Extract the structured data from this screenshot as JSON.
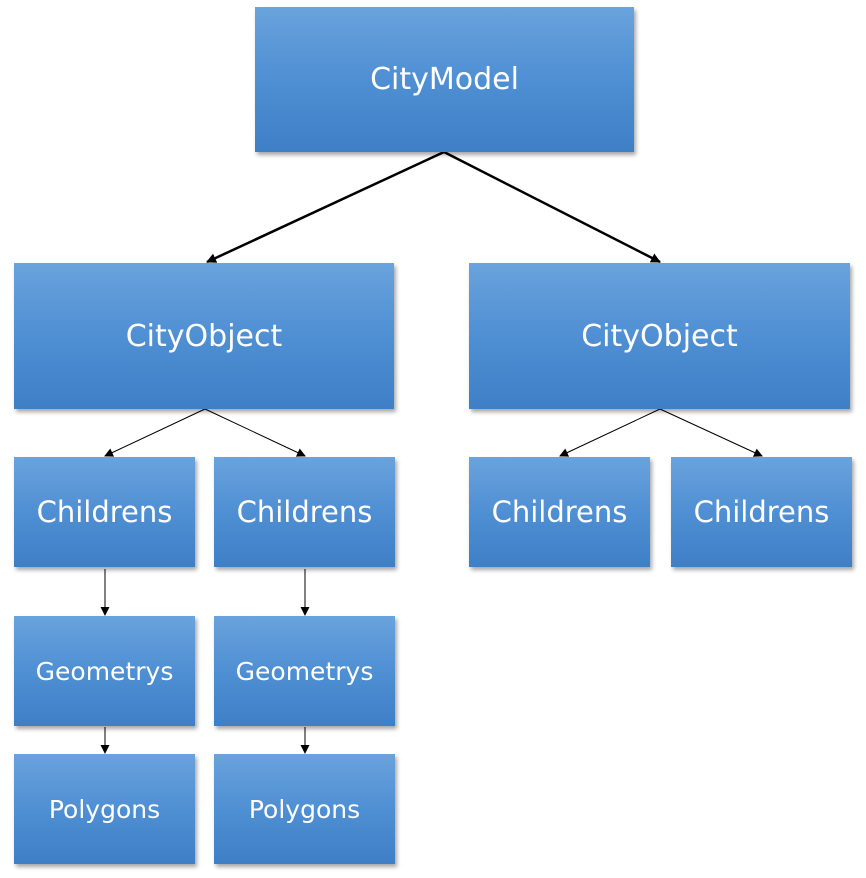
{
  "root": {
    "label": "CityModel"
  },
  "city_objects": [
    {
      "label": "CityObject"
    },
    {
      "label": "CityObject"
    }
  ],
  "children": [
    {
      "label": "Childrens"
    },
    {
      "label": "Childrens"
    },
    {
      "label": "Childrens"
    },
    {
      "label": "Childrens"
    }
  ],
  "geometries": [
    {
      "label": "Geometrys"
    },
    {
      "label": "Geometrys"
    }
  ],
  "polygons": [
    {
      "label": "Polygons"
    },
    {
      "label": "Polygons"
    }
  ],
  "colors": {
    "box_fill": "#5b9bd5",
    "text": "#ffffff",
    "connector": "#000000"
  }
}
